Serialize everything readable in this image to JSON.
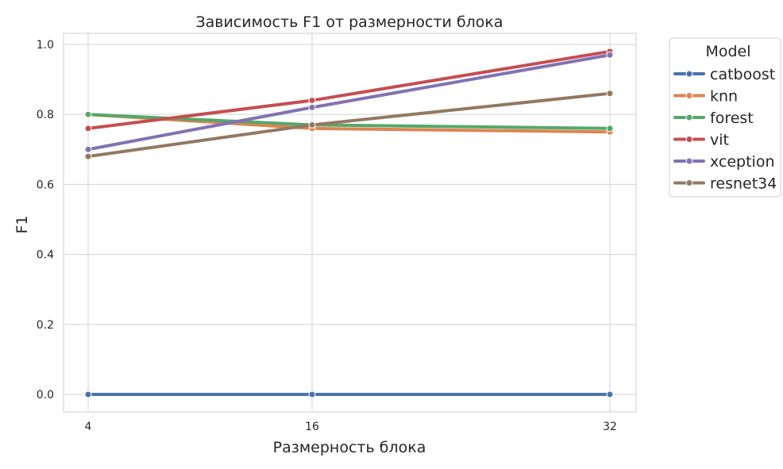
{
  "chart_data": {
    "type": "line",
    "title": "Зависимость F1 от размерности блока",
    "xlabel": "Размерность блока",
    "ylabel": "F1",
    "x": [
      4,
      16,
      32
    ],
    "x_tick_labels": [
      "4",
      "16",
      "32"
    ],
    "ylim": [
      -0.05,
      1.03
    ],
    "y_ticks": [
      0.0,
      0.2,
      0.4,
      0.6,
      0.8,
      1.0
    ],
    "y_tick_labels": [
      "0.0",
      "0.2",
      "0.4",
      "0.6",
      "0.8",
      "1.0"
    ],
    "grid": true,
    "legend": {
      "title": "Model",
      "placement": "outside-top-right"
    },
    "series": [
      {
        "name": "catboost",
        "values": [
          0.0,
          0.0,
          0.0
        ],
        "color": "#4C72B0"
      },
      {
        "name": "knn",
        "values": [
          0.8,
          0.76,
          0.75
        ],
        "color": "#DD8452"
      },
      {
        "name": "forest",
        "values": [
          0.8,
          0.77,
          0.76
        ],
        "color": "#55A868"
      },
      {
        "name": "vit",
        "values": [
          0.76,
          0.84,
          0.98
        ],
        "color": "#C44E52"
      },
      {
        "name": "xception",
        "values": [
          0.7,
          0.82,
          0.97
        ],
        "color": "#8172B3"
      },
      {
        "name": "resnet34",
        "values": [
          0.68,
          0.77,
          0.86
        ],
        "color": "#937860"
      }
    ]
  }
}
